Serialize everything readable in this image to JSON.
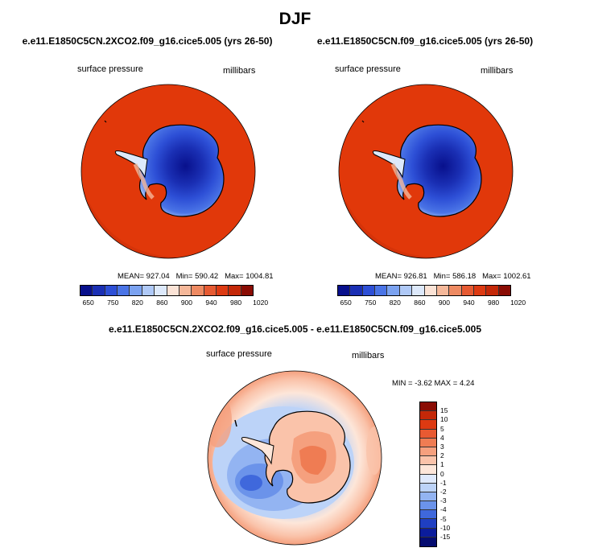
{
  "title": "DJF",
  "panels": {
    "left": {
      "case": "e.e11.E1850C5CN.2XCO2.f09_g16.cice5.005 (yrs 26-50)",
      "variable": "surface pressure",
      "units": "millibars",
      "mean_text": "MEAN= 927.04",
      "min_text": "Min= 590.42",
      "max_text": "Max= 1004.81"
    },
    "right": {
      "case": "e.e11.E1850C5CN.f09_g16.cice5.005 (yrs 26-50)",
      "variable": "surface pressure",
      "units": "millibars",
      "mean_text": "MEAN= 926.81",
      "min_text": "Min= 586.18",
      "max_text": "Max= 1002.61"
    },
    "diff": {
      "case": "e.e11.E1850C5CN.2XCO2.f09_g16.cice5.005 - e.e11.E1850C5CN.f09_g16.cice5.005",
      "variable": "surface pressure",
      "units": "millibars",
      "minmax_text": "MIN =  -3.62 MAX =   4.24"
    }
  },
  "colorbar_abs": {
    "labels": [
      "650",
      "750",
      "820",
      "860",
      "900",
      "940",
      "980",
      "1020"
    ],
    "colors": [
      "#08108c",
      "#1a2fb4",
      "#2d4fd6",
      "#4a74e6",
      "#7ba2f0",
      "#afc9f7",
      "#dde9fb",
      "#fbe3d6",
      "#f5b89a",
      "#ee8a62",
      "#e65a32",
      "#dd3a12",
      "#c42808",
      "#8a0c04"
    ]
  },
  "colorbar_diff": {
    "labels": [
      "15",
      "10",
      "5",
      "4",
      "3",
      "2",
      "1",
      "0",
      "-1",
      "-2",
      "-3",
      "-4",
      "-5",
      "-10",
      "-15"
    ],
    "colors": [
      "#8a0c04",
      "#c42808",
      "#dd3a12",
      "#e85a32",
      "#ef7c53",
      "#f5a07e",
      "#fac3aa",
      "#fde6d9",
      "#dfe9fc",
      "#bcd3f8",
      "#93b4f2",
      "#6b93ea",
      "#3f68dc",
      "#1f3fc2",
      "#0b1c9c",
      "#050c70"
    ]
  },
  "colors": {
    "ocean_abs": "#e1380a",
    "ocean_abs_edge": "#c02c08",
    "coast": "#000000"
  }
}
